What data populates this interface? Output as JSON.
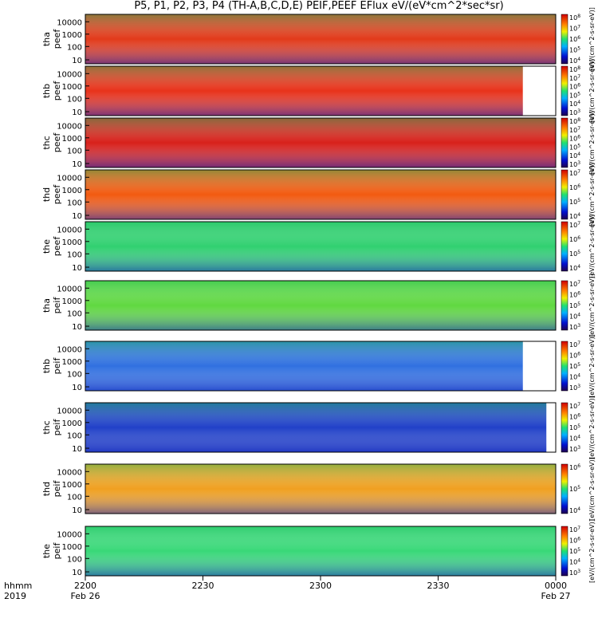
{
  "title": "P5, P1, P2, P3, P4 (TH-A,B,C,D,E) PEIF,PEEF EFlux eV/(eV*cm^2*sec*sr)",
  "chart_data": {
    "type": "heatmap",
    "title": "P5, P1, P2, P3, P4 (TH-A,B,C,D,E) PEIF,PEEF EFlux eV/(eV*cm^2*sec*sr)",
    "xlabel": "hhmm",
    "year_label": "2019",
    "x_ticks": [
      {
        "value": "2200",
        "sub": "Feb 26"
      },
      {
        "value": "2230",
        "sub": ""
      },
      {
        "value": "2300",
        "sub": ""
      },
      {
        "value": "2330",
        "sub": ""
      },
      {
        "value": "0000",
        "sub": "Feb 27"
      }
    ],
    "y_scale": "log",
    "y_ticks": [
      "10",
      "100",
      "1000",
      "10000"
    ],
    "colorbar_unit": "[eV/(cm^2-s-sr-eV)]",
    "panels": [
      {
        "ylabel": [
          "tha",
          "peef"
        ],
        "colorbar_ticks": [
          "10^4",
          "10^5",
          "10^6",
          "10^7",
          "10^8"
        ],
        "fill_end": 1.0,
        "color": "#e23a1a"
      },
      {
        "ylabel": [
          "thb",
          "peef"
        ],
        "colorbar_ticks": [
          "10^3",
          "10^4",
          "10^5",
          "10^6",
          "10^7",
          "10^8"
        ],
        "fill_end": 0.93,
        "color": "#e8321a"
      },
      {
        "ylabel": [
          "thc",
          "peef"
        ],
        "colorbar_ticks": [
          "10^3",
          "10^4",
          "10^5",
          "10^6",
          "10^7",
          "10^8"
        ],
        "fill_end": 1.0,
        "color": "#d8201a"
      },
      {
        "ylabel": [
          "thd",
          "peef"
        ],
        "colorbar_ticks": [
          "10^4",
          "10^5",
          "10^6",
          "10^7"
        ],
        "fill_end": 1.0,
        "color": "#f25a10"
      },
      {
        "ylabel": [
          "the",
          "peef"
        ],
        "colorbar_ticks": [
          "10^4",
          "10^5",
          "10^6",
          "10^7"
        ],
        "fill_end": 1.0,
        "color": "#30d070"
      },
      {
        "ylabel": [
          "tha",
          "peif"
        ],
        "colorbar_ticks": [
          "10^3",
          "10^4",
          "10^5",
          "10^6",
          "10^7"
        ],
        "fill_end": 1.0,
        "color": "#60d840"
      },
      {
        "ylabel": [
          "thb",
          "peif"
        ],
        "colorbar_ticks": [
          "10^3",
          "10^4",
          "10^5",
          "10^6",
          "10^7"
        ],
        "fill_end": 0.93,
        "color": "#3070e0"
      },
      {
        "ylabel": [
          "thc",
          "peif"
        ],
        "colorbar_ticks": [
          "10^3",
          "10^4",
          "10^5",
          "10^6",
          "10^7"
        ],
        "fill_end": 0.98,
        "color": "#2040c8"
      },
      {
        "ylabel": [
          "thd",
          "peif"
        ],
        "colorbar_ticks": [
          "10^4",
          "10^5",
          "10^6"
        ],
        "fill_end": 1.0,
        "color": "#f0a020"
      },
      {
        "ylabel": [
          "the",
          "peif"
        ],
        "colorbar_ticks": [
          "10^3",
          "10^4",
          "10^5",
          "10^6",
          "10^7"
        ],
        "fill_end": 1.0,
        "color": "#38d878"
      }
    ]
  }
}
